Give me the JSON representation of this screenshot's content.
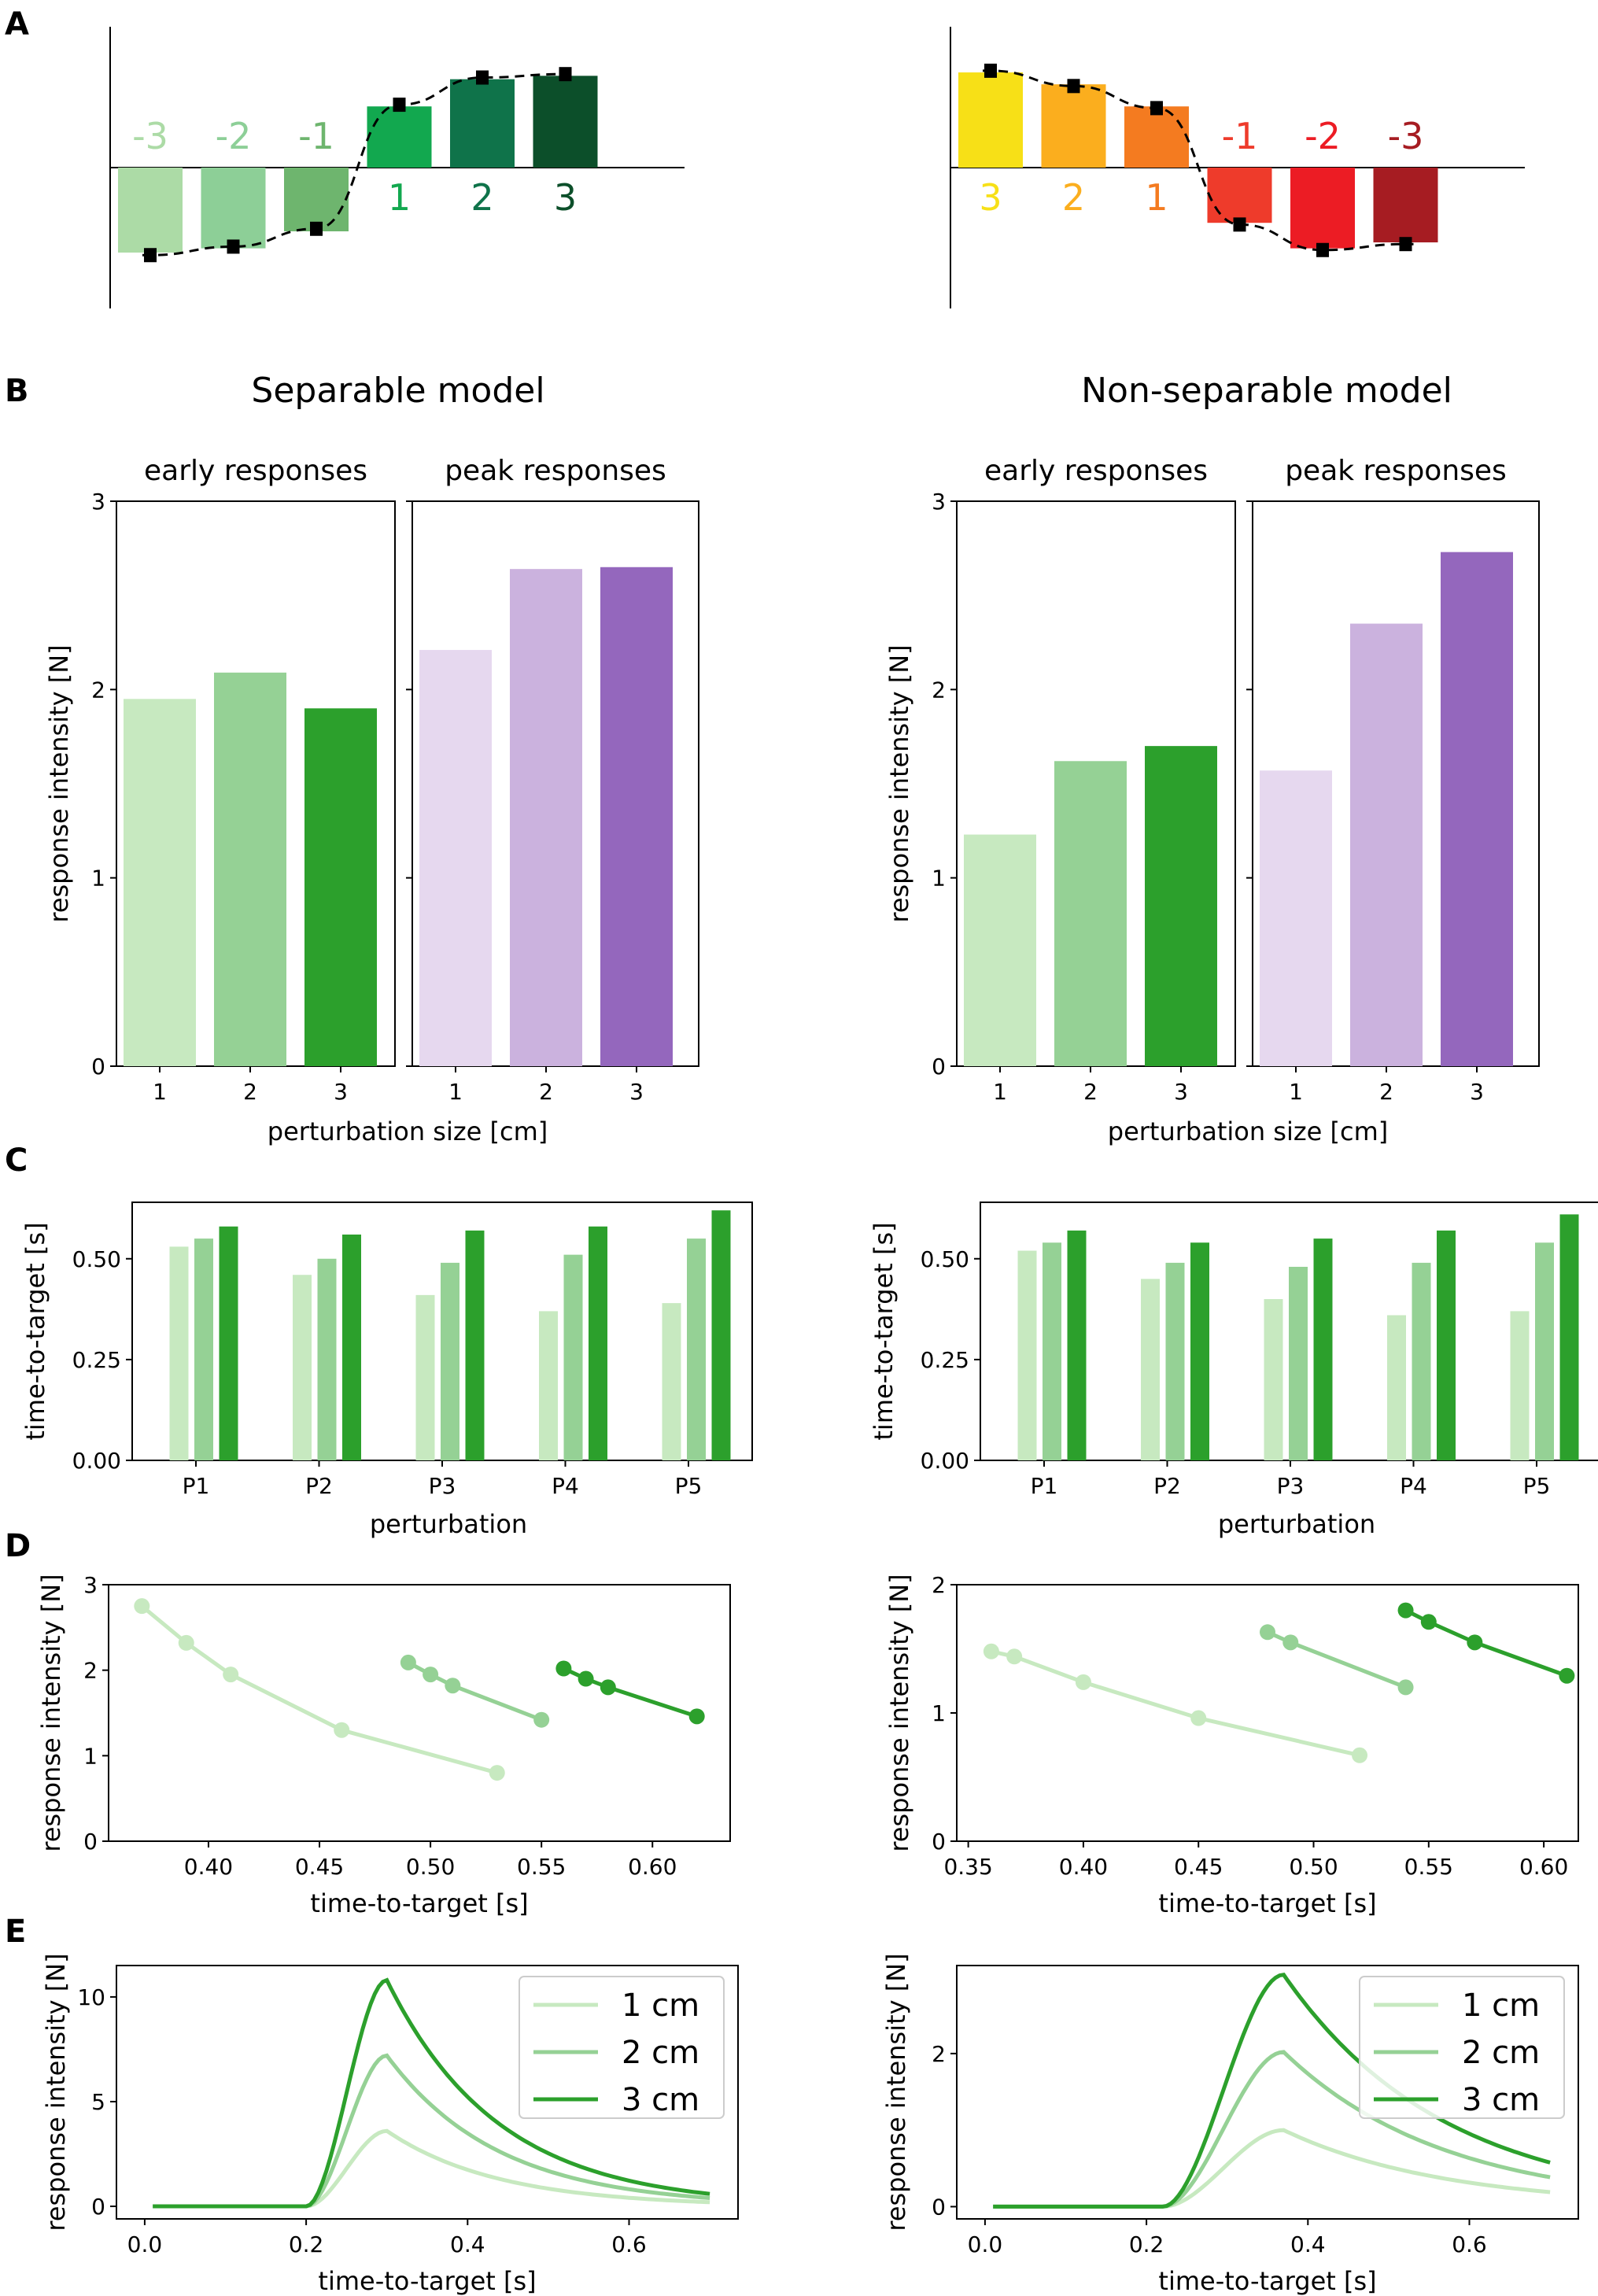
{
  "figure": {
    "panel_labels": [
      "A",
      "B",
      "C",
      "D",
      "E"
    ],
    "colors": {
      "green1": "#c7e9c0",
      "green2": "#95d195",
      "green3": "#2ca02c",
      "purple1": "#e6d8ef",
      "purple2": "#cbb2de",
      "purple3": "#9467bd",
      "black": "#000000"
    }
  },
  "chart_data": [
    {
      "id": "A_left",
      "type": "bar",
      "title": "",
      "categories": [
        "-3",
        "-2",
        "-1",
        "1",
        "2",
        "3"
      ],
      "values": [
        -1.0,
        -0.95,
        -0.75,
        0.72,
        1.04,
        1.08
      ],
      "markers": [
        -1.03,
        -0.93,
        -0.72,
        0.74,
        1.06,
        1.1
      ],
      "colors": [
        "#acdba6",
        "#8dcf97",
        "#6eb56e",
        "#12a84f",
        "#0f734a",
        "#0c4f2a"
      ],
      "label_colors": [
        "#acdba6",
        "#8dcf97",
        "#6eb56e",
        "#12a84f",
        "#0f734a",
        "#0c4f2a"
      ],
      "ylim": [
        -1.65,
        1.6
      ],
      "dashed_curve": "sigmoid"
    },
    {
      "id": "A_right",
      "type": "bar",
      "title": "",
      "categories": [
        "3",
        "2",
        "1",
        "-1",
        "-2",
        "-3"
      ],
      "values": [
        1.12,
        0.98,
        0.72,
        -0.65,
        -0.95,
        -0.88
      ],
      "markers": [
        1.14,
        0.96,
        0.7,
        -0.67,
        -0.97,
        -0.9
      ],
      "colors": [
        "#f7e017",
        "#fbae1e",
        "#f47b20",
        "#ee3b2b",
        "#ec1c24",
        "#a61c22"
      ],
      "label_colors": [
        "#f7e017",
        "#fbae1e",
        "#f47b20",
        "#ee3b2b",
        "#ec1c24",
        "#a61c22"
      ],
      "ylim": [
        -1.65,
        1.6
      ],
      "dashed_curve": "sigmoid"
    },
    {
      "id": "B_left",
      "type": "bar",
      "title": "Separable model",
      "subpanels": [
        {
          "title": "early responses",
          "categories": [
            "1",
            "2",
            "3"
          ],
          "values": [
            1.95,
            2.09,
            1.9
          ]
        },
        {
          "title": "peak responses",
          "categories": [
            "1",
            "2",
            "3"
          ],
          "values": [
            2.21,
            2.64,
            2.65
          ]
        }
      ],
      "xlabel": "perturbation size [cm]",
      "ylabel": "response intensity [N]",
      "ylim": [
        0,
        3
      ],
      "yticks": [
        "0",
        "1",
        "2",
        "3"
      ]
    },
    {
      "id": "B_right",
      "type": "bar",
      "title": "Non-separable model",
      "subpanels": [
        {
          "title": "early responses",
          "categories": [
            "1",
            "2",
            "3"
          ],
          "values": [
            1.23,
            1.62,
            1.7
          ]
        },
        {
          "title": "peak responses",
          "categories": [
            "1",
            "2",
            "3"
          ],
          "values": [
            1.57,
            2.35,
            2.73
          ]
        }
      ],
      "xlabel": "perturbation size [cm]",
      "ylabel": "response intensity [N]",
      "ylim": [
        0,
        3
      ],
      "yticks": [
        "0",
        "1",
        "2",
        "3"
      ]
    },
    {
      "id": "C_left",
      "type": "bar",
      "categories": [
        "P1",
        "P2",
        "P3",
        "P4",
        "P5"
      ],
      "series": [
        {
          "name": "1 cm",
          "values": [
            0.53,
            0.46,
            0.41,
            0.37,
            0.39
          ]
        },
        {
          "name": "2 cm",
          "values": [
            0.55,
            0.5,
            0.49,
            0.51,
            0.55
          ]
        },
        {
          "name": "3 cm",
          "values": [
            0.58,
            0.56,
            0.57,
            0.58,
            0.62
          ]
        }
      ],
      "xlabel": "perturbation",
      "ylabel": "time-to-target [s]",
      "ylim": [
        0,
        0.64
      ],
      "yticks": [
        "0.00",
        "0.25",
        "0.50"
      ]
    },
    {
      "id": "C_right",
      "type": "bar",
      "categories": [
        "P1",
        "P2",
        "P3",
        "P4",
        "P5"
      ],
      "series": [
        {
          "name": "1 cm",
          "values": [
            0.52,
            0.45,
            0.4,
            0.36,
            0.37
          ]
        },
        {
          "name": "2 cm",
          "values": [
            0.54,
            0.49,
            0.48,
            0.49,
            0.54
          ]
        },
        {
          "name": "3 cm",
          "values": [
            0.57,
            0.54,
            0.55,
            0.57,
            0.61
          ]
        }
      ],
      "xlabel": "perturbation",
      "ylabel": "time-to-target [s]",
      "ylim": [
        0,
        0.64
      ],
      "yticks": [
        "0.00",
        "0.25",
        "0.50"
      ]
    },
    {
      "id": "D_left",
      "type": "line",
      "series": [
        {
          "name": "1 cm",
          "x": [
            0.37,
            0.39,
            0.41,
            0.46,
            0.53
          ],
          "y": [
            2.75,
            2.32,
            1.95,
            1.3,
            0.8
          ]
        },
        {
          "name": "2 cm",
          "x": [
            0.49,
            0.5,
            0.51,
            0.55
          ],
          "y": [
            2.09,
            1.95,
            1.82,
            1.42
          ]
        },
        {
          "name": "3 cm",
          "x": [
            0.56,
            0.57,
            0.58,
            0.62
          ],
          "y": [
            2.02,
            1.9,
            1.8,
            1.46
          ]
        }
      ],
      "xlabel": "time-to-target [s]",
      "ylabel": "response intensity [N]",
      "xlim": [
        0.355,
        0.635
      ],
      "ylim": [
        0,
        3
      ],
      "xticks": [
        "0.40",
        "0.45",
        "0.50",
        "0.55",
        "0.60"
      ],
      "yticks": [
        "0",
        "1",
        "2",
        "3"
      ]
    },
    {
      "id": "D_right",
      "type": "line",
      "series": [
        {
          "name": "1 cm",
          "x": [
            0.36,
            0.37,
            0.4,
            0.45,
            0.52
          ],
          "y": [
            1.48,
            1.44,
            1.24,
            0.96,
            0.67
          ]
        },
        {
          "name": "2 cm",
          "x": [
            0.48,
            0.49,
            0.54
          ],
          "y": [
            1.63,
            1.55,
            1.2
          ]
        },
        {
          "name": "3 cm",
          "x": [
            0.54,
            0.55,
            0.57,
            0.61
          ],
          "y": [
            1.8,
            1.71,
            1.55,
            1.29
          ]
        }
      ],
      "xlabel": "time-to-target [s]",
      "ylabel": "response intensity [N]",
      "xlim": [
        0.345,
        0.615
      ],
      "ylim": [
        0,
        2
      ],
      "xticks": [
        "0.35",
        "0.40",
        "0.45",
        "0.50",
        "0.55",
        "0.60"
      ],
      "yticks": [
        "0",
        "1",
        "2"
      ]
    },
    {
      "id": "E_left",
      "type": "line",
      "series": [
        {
          "name": "1 cm",
          "peak": 3.6
        },
        {
          "name": "2 cm",
          "peak": 7.2
        },
        {
          "name": "3 cm",
          "peak": 10.8
        }
      ],
      "curve": {
        "onset": 0.2,
        "peak_time": 0.3,
        "decay": 0.1,
        "tail_fraction": 0.055
      },
      "xlabel": "time-to-target [s]",
      "ylabel": "response intensity [N]",
      "xlim": [
        -0.035,
        0.735
      ],
      "ylim": [
        -0.6,
        11.5
      ],
      "xticks": [
        "0.0",
        "0.2",
        "0.4",
        "0.6"
      ],
      "yticks": [
        "0",
        "5",
        "10"
      ],
      "legend": [
        "1 cm",
        "2 cm",
        "3 cm"
      ]
    },
    {
      "id": "E_right",
      "type": "line",
      "series": [
        {
          "name": "1 cm",
          "peak": 1.0
        },
        {
          "name": "2 cm",
          "peak": 2.02
        },
        {
          "name": "3 cm",
          "peak": 3.03
        }
      ],
      "curve": {
        "onset": 0.22,
        "peak_time": 0.37,
        "decay": 0.2,
        "tail_fraction": 0.19
      },
      "xlabel": "time-to-target [s]",
      "ylabel": "response intensity [N]",
      "xlim": [
        -0.035,
        0.735
      ],
      "ylim": [
        -0.16,
        3.15
      ],
      "xticks": [
        "0.0",
        "0.2",
        "0.4",
        "0.6"
      ],
      "yticks": [
        "0",
        "2"
      ],
      "legend": [
        "1 cm",
        "2 cm",
        "3 cm"
      ]
    }
  ]
}
